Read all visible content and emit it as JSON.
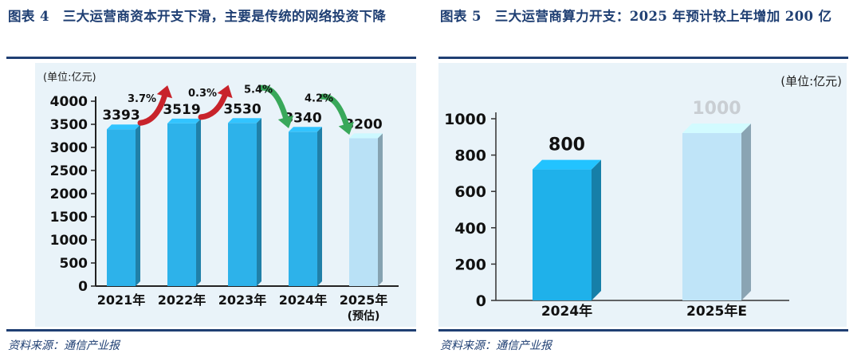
{
  "left_figure": {
    "title": "图表 4　三大运营商资本开支下滑，主要是传统的网络投资下降",
    "source": "资料来源：通信产业报",
    "chart_data": {
      "type": "bar",
      "unit_label": "(单位:亿元)",
      "categories": [
        "2021年",
        "2022年",
        "2023年",
        "2024年",
        "2025年"
      ],
      "category_notes": [
        "",
        "",
        "",
        "",
        "(预估)"
      ],
      "values": [
        3393,
        3519,
        3530,
        3340,
        3200
      ],
      "value_labels": [
        "3393",
        "3519",
        "3530",
        "3340",
        "3200"
      ],
      "estimated": [
        false,
        false,
        false,
        false,
        true
      ],
      "ylim": [
        0,
        4000
      ],
      "yticks": [
        0,
        500,
        1000,
        1500,
        2000,
        2500,
        3000,
        3500,
        4000
      ],
      "changes": [
        {
          "label": "3.7%",
          "direction": "up"
        },
        {
          "label": "0.3%",
          "direction": "up"
        },
        {
          "label": "5.4%",
          "direction": "down"
        },
        {
          "label": "4.2%",
          "direction": "down"
        }
      ],
      "colors": {
        "bar": "#2db2ea",
        "bar_estimated": "#b9e1f6",
        "up_arrow": "#c8232b",
        "down_arrow": "#39a85a",
        "background": "#e9f3f9"
      }
    }
  },
  "right_figure": {
    "title": "图表 5　三大运营商算力开支：2025 年预计较上年增加 200 亿",
    "source": "资料来源：通信产业报",
    "chart_data": {
      "type": "bar",
      "unit_label": "(单位:亿元)",
      "categories": [
        "2024年",
        "2025年E"
      ],
      "values": [
        800,
        1000
      ],
      "value_labels": [
        "800",
        "1000"
      ],
      "estimated": [
        false,
        true
      ],
      "ylim": [
        0,
        1000
      ],
      "yticks": [
        0,
        200,
        400,
        600,
        800,
        1000
      ],
      "colors": {
        "bar": "#1fb1ea",
        "bar_estimated": "#bfe4f8",
        "background": "#e9f3f9"
      }
    }
  }
}
